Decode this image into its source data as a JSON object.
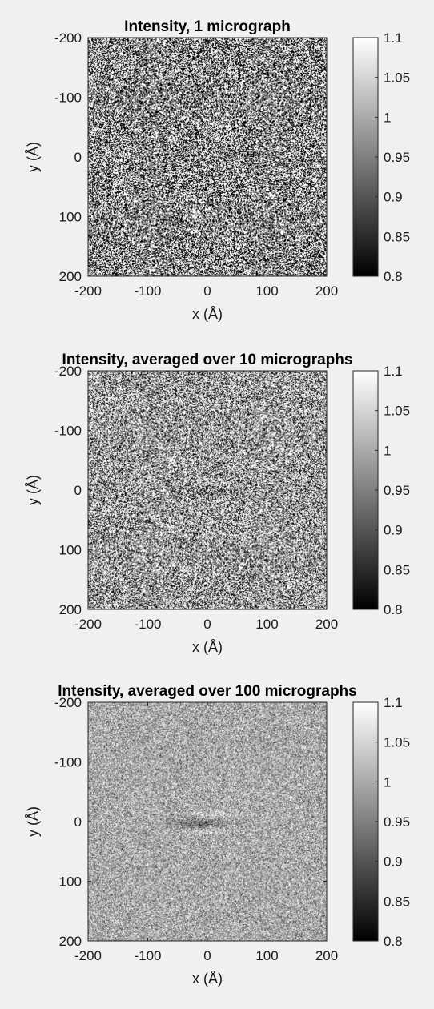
{
  "chart_data": [
    {
      "type": "heatmap",
      "title": "Intensity, 1 micrograph",
      "xlabel": "x (Å)",
      "ylabel": "y (Å)",
      "xlim": [
        -200,
        200
      ],
      "ylim": [
        -200,
        200
      ],
      "y_direction": "reversed",
      "x_ticks": [
        "-200",
        "-100",
        "0",
        "100",
        "200"
      ],
      "y_ticks": [
        "-200",
        "-100",
        "0",
        "100",
        "200"
      ],
      "colormap": "gray",
      "clim": [
        0.8,
        1.1
      ],
      "colorbar_ticks": [
        "0.8",
        "0.85",
        "0.9",
        "0.95",
        "1",
        "1.05",
        "1.1"
      ],
      "micrographs_averaged": 1
    },
    {
      "type": "heatmap",
      "title": "Intensity, averaged over 10 micrographs",
      "xlabel": "x (Å)",
      "ylabel": "y (Å)",
      "xlim": [
        -200,
        200
      ],
      "ylim": [
        -200,
        200
      ],
      "y_direction": "reversed",
      "x_ticks": [
        "-200",
        "-100",
        "0",
        "100",
        "200"
      ],
      "y_ticks": [
        "-200",
        "-100",
        "0",
        "100",
        "200"
      ],
      "colormap": "gray",
      "clim": [
        0.8,
        1.1
      ],
      "colorbar_ticks": [
        "0.8",
        "0.85",
        "0.9",
        "0.95",
        "1",
        "1.05",
        "1.1"
      ],
      "micrographs_averaged": 10
    },
    {
      "type": "heatmap",
      "title": "Intensity, averaged over 100 micrographs",
      "xlabel": "x (Å)",
      "ylabel": "y (Å)",
      "xlim": [
        -200,
        200
      ],
      "ylim": [
        -200,
        200
      ],
      "y_direction": "reversed",
      "x_ticks": [
        "-200",
        "-100",
        "0",
        "100",
        "200"
      ],
      "y_ticks": [
        "-200",
        "-100",
        "0",
        "100",
        "200"
      ],
      "colormap": "gray",
      "clim": [
        0.8,
        1.1
      ],
      "colorbar_ticks": [
        "0.8",
        "0.85",
        "0.9",
        "0.95",
        "1",
        "1.05",
        "1.1"
      ],
      "micrographs_averaged": 100
    }
  ]
}
